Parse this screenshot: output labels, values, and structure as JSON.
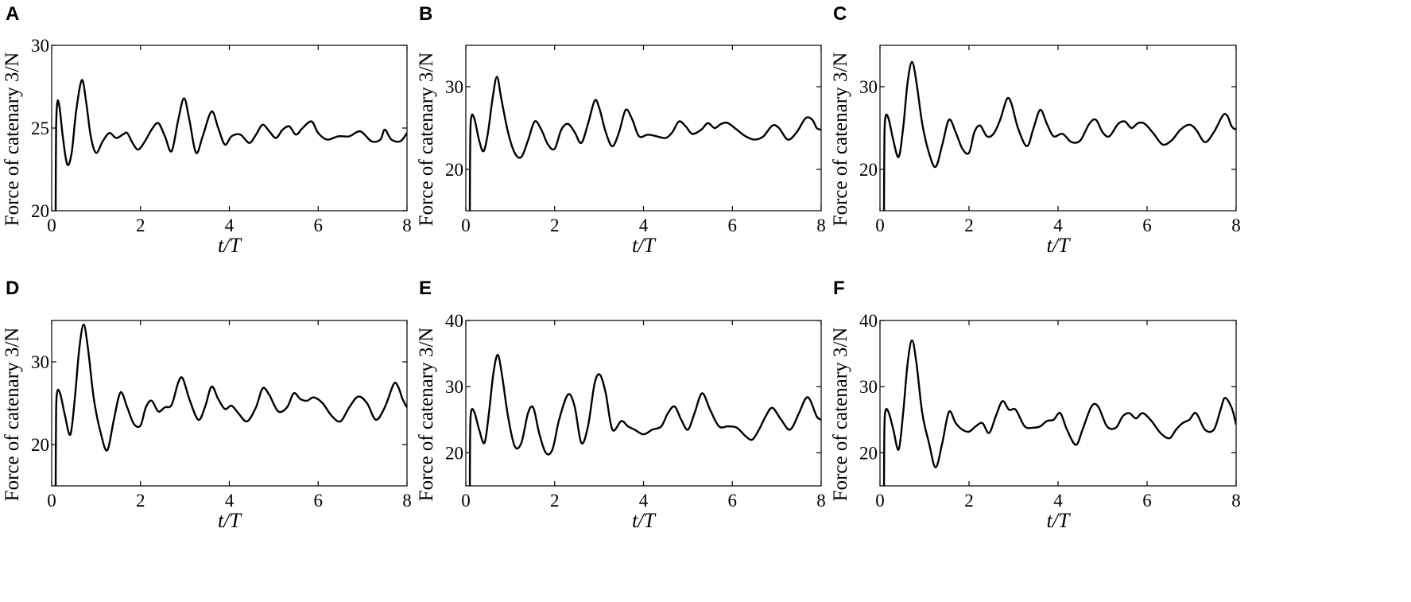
{
  "chart_data": [
    {
      "type": "line",
      "panel_label": "A",
      "xlabel": "t/T",
      "ylabel": "Force of catenary 3/N",
      "xlim": [
        0,
        8
      ],
      "ylim": [
        20,
        30
      ],
      "xticks": [
        0,
        2,
        4,
        6,
        8
      ],
      "yticks": [
        20,
        25,
        30
      ],
      "grid": false,
      "series": [
        {
          "x": [
            0.09,
            0.1,
            0.13,
            0.18,
            0.25,
            0.35,
            0.45,
            0.55,
            0.68,
            0.78,
            0.88,
            1.0,
            1.15,
            1.3,
            1.45,
            1.6,
            1.7,
            1.82,
            1.95,
            2.1,
            2.25,
            2.4,
            2.55,
            2.7,
            2.85,
            2.98,
            3.1,
            3.25,
            3.4,
            3.6,
            3.75,
            3.9,
            4.05,
            4.25,
            4.45,
            4.6,
            4.75,
            4.9,
            5.05,
            5.2,
            5.35,
            5.5,
            5.65,
            5.85,
            6.0,
            6.2,
            6.45,
            6.7,
            6.95,
            7.2,
            7.4,
            7.5,
            7.65,
            7.85,
            8.0
          ],
          "y": [
            20.0,
            25.0,
            26.6,
            26.2,
            24.5,
            22.8,
            23.5,
            26.0,
            27.9,
            26.5,
            24.5,
            23.5,
            24.2,
            24.7,
            24.4,
            24.6,
            24.7,
            24.1,
            23.7,
            24.2,
            24.9,
            25.3,
            24.5,
            23.6,
            25.5,
            26.8,
            25.5,
            23.5,
            24.5,
            26.0,
            25.0,
            24.0,
            24.5,
            24.6,
            24.1,
            24.6,
            25.2,
            24.8,
            24.4,
            24.9,
            25.1,
            24.6,
            25.0,
            25.4,
            24.7,
            24.3,
            24.5,
            24.5,
            24.8,
            24.2,
            24.3,
            24.9,
            24.3,
            24.2,
            24.7
          ]
        }
      ]
    },
    {
      "type": "line",
      "panel_label": "B",
      "xlabel": "t/T",
      "ylabel": "Force of catenary 3/N",
      "xlim": [
        0,
        8
      ],
      "ylim": [
        15,
        35
      ],
      "xticks": [
        0,
        2,
        4,
        6,
        8
      ],
      "yticks": [
        20,
        30
      ],
      "grid": false,
      "series": [
        {
          "x": [
            0.09,
            0.1,
            0.13,
            0.2,
            0.3,
            0.4,
            0.5,
            0.6,
            0.7,
            0.8,
            0.95,
            1.1,
            1.25,
            1.4,
            1.55,
            1.7,
            1.85,
            2.0,
            2.15,
            2.3,
            2.45,
            2.6,
            2.75,
            2.9,
            3.0,
            3.15,
            3.3,
            3.45,
            3.6,
            3.75,
            3.9,
            4.1,
            4.3,
            4.5,
            4.65,
            4.8,
            4.95,
            5.1,
            5.3,
            5.45,
            5.6,
            5.75,
            5.9,
            6.1,
            6.3,
            6.5,
            6.7,
            6.9,
            7.05,
            7.25,
            7.45,
            7.65,
            7.8,
            7.9,
            8.0
          ],
          "y": [
            15.0,
            24.0,
            26.5,
            26.0,
            23.5,
            22.2,
            24.5,
            28.5,
            31.2,
            28.5,
            24.5,
            22.0,
            21.5,
            23.5,
            25.8,
            24.8,
            23.0,
            22.5,
            24.8,
            25.5,
            24.5,
            23.2,
            25.5,
            28.3,
            27.5,
            24.5,
            22.8,
            24.5,
            27.2,
            26.0,
            24.0,
            24.2,
            24.0,
            23.8,
            24.5,
            25.8,
            25.2,
            24.3,
            24.8,
            25.6,
            25.0,
            25.5,
            25.6,
            24.8,
            24.0,
            23.6,
            24.0,
            25.3,
            25.0,
            23.6,
            24.5,
            26.2,
            26.0,
            25.0,
            24.8
          ]
        }
      ]
    },
    {
      "type": "line",
      "panel_label": "C",
      "xlabel": "t/T",
      "ylabel": "Force of catenary 3/N",
      "xlim": [
        0,
        8
      ],
      "ylim": [
        15,
        35
      ],
      "xticks": [
        0,
        2,
        4,
        6,
        8
      ],
      "yticks": [
        20,
        30
      ],
      "grid": false,
      "series": [
        {
          "x": [
            0.09,
            0.1,
            0.13,
            0.2,
            0.3,
            0.42,
            0.52,
            0.62,
            0.72,
            0.82,
            0.95,
            1.1,
            1.25,
            1.4,
            1.55,
            1.7,
            1.85,
            2.0,
            2.12,
            2.25,
            2.4,
            2.55,
            2.7,
            2.85,
            2.95,
            3.1,
            3.3,
            3.45,
            3.6,
            3.75,
            3.9,
            4.1,
            4.3,
            4.5,
            4.7,
            4.85,
            5.0,
            5.15,
            5.35,
            5.5,
            5.65,
            5.8,
            5.95,
            6.15,
            6.35,
            6.55,
            6.75,
            6.95,
            7.1,
            7.3,
            7.5,
            7.7,
            7.8,
            7.9,
            8.0
          ],
          "y": [
            15.0,
            24.0,
            26.5,
            26.0,
            23.5,
            21.5,
            25.0,
            30.5,
            33.0,
            30.5,
            25.5,
            22.0,
            20.3,
            23.0,
            26.0,
            24.5,
            22.5,
            22.0,
            24.5,
            25.3,
            24.0,
            24.3,
            26.0,
            28.5,
            28.0,
            25.0,
            22.8,
            25.0,
            27.2,
            25.5,
            24.0,
            24.3,
            23.3,
            23.5,
            25.5,
            26.0,
            24.5,
            24.0,
            25.5,
            25.8,
            25.0,
            25.6,
            25.5,
            24.3,
            23.0,
            23.5,
            24.8,
            25.4,
            24.8,
            23.3,
            24.5,
            26.5,
            26.5,
            25.2,
            24.8
          ]
        }
      ]
    },
    {
      "type": "line",
      "panel_label": "D",
      "xlabel": "t/T",
      "ylabel": "Force of catenary 3/N",
      "xlim": [
        0,
        8
      ],
      "ylim": [
        15,
        35
      ],
      "xticks": [
        0,
        2,
        4,
        6,
        8
      ],
      "yticks": [
        20,
        30
      ],
      "grid": false,
      "series": [
        {
          "x": [
            0.09,
            0.1,
            0.13,
            0.2,
            0.3,
            0.42,
            0.52,
            0.62,
            0.72,
            0.82,
            0.95,
            1.1,
            1.25,
            1.4,
            1.55,
            1.7,
            1.85,
            2.0,
            2.12,
            2.25,
            2.4,
            2.55,
            2.7,
            2.85,
            2.95,
            3.1,
            3.3,
            3.45,
            3.6,
            3.75,
            3.9,
            4.05,
            4.2,
            4.4,
            4.6,
            4.75,
            4.9,
            5.1,
            5.3,
            5.45,
            5.6,
            5.75,
            5.9,
            6.1,
            6.3,
            6.5,
            6.7,
            6.9,
            7.1,
            7.3,
            7.5,
            7.7,
            7.8,
            7.9,
            8.0
          ],
          "y": [
            15.0,
            24.0,
            26.5,
            26.0,
            23.5,
            21.2,
            25.5,
            31.5,
            34.5,
            31.5,
            25.5,
            21.5,
            19.3,
            23.0,
            26.3,
            24.5,
            22.5,
            22.3,
            24.5,
            25.3,
            24.0,
            24.5,
            24.8,
            27.5,
            28.0,
            25.5,
            23.0,
            24.5,
            27.0,
            25.5,
            24.3,
            24.7,
            23.8,
            22.8,
            24.5,
            26.8,
            26.0,
            24.0,
            24.5,
            26.2,
            25.5,
            25.3,
            25.7,
            25.0,
            23.5,
            22.8,
            24.5,
            25.8,
            25.0,
            23.0,
            24.5,
            27.3,
            27.0,
            25.5,
            24.5
          ]
        }
      ]
    },
    {
      "type": "line",
      "panel_label": "E",
      "xlabel": "t/T",
      "ylabel": "Force of catenary 3/N",
      "xlim": [
        0,
        8
      ],
      "ylim": [
        15,
        40
      ],
      "xticks": [
        0,
        2,
        4,
        6,
        8
      ],
      "yticks": [
        20,
        30,
        40
      ],
      "grid": false,
      "series": [
        {
          "x": [
            0.09,
            0.1,
            0.13,
            0.2,
            0.3,
            0.42,
            0.52,
            0.62,
            0.72,
            0.82,
            0.95,
            1.1,
            1.25,
            1.4,
            1.52,
            1.65,
            1.8,
            1.95,
            2.1,
            2.3,
            2.45,
            2.6,
            2.75,
            2.9,
            3.02,
            3.15,
            3.3,
            3.5,
            3.65,
            3.8,
            4.0,
            4.2,
            4.4,
            4.55,
            4.7,
            4.85,
            5.0,
            5.15,
            5.32,
            5.5,
            5.7,
            5.9,
            6.1,
            6.3,
            6.45,
            6.6,
            6.75,
            6.9,
            7.1,
            7.3,
            7.5,
            7.65,
            7.75,
            7.9,
            8.0
          ],
          "y": [
            15.0,
            24.0,
            26.5,
            26.0,
            23.5,
            21.5,
            26.0,
            32.0,
            34.8,
            31.5,
            25.5,
            21.0,
            21.5,
            26.0,
            26.8,
            23.0,
            20.0,
            20.5,
            25.0,
            28.8,
            27.0,
            21.5,
            24.0,
            30.5,
            31.8,
            29.0,
            23.5,
            24.8,
            24.0,
            23.5,
            22.8,
            23.5,
            24.0,
            26.0,
            27.0,
            25.0,
            23.5,
            26.0,
            29.0,
            26.5,
            24.0,
            24.0,
            23.8,
            22.5,
            22.0,
            23.5,
            25.5,
            26.8,
            25.0,
            23.5,
            26.0,
            28.2,
            28.0,
            25.5,
            25.0
          ]
        }
      ]
    },
    {
      "type": "line",
      "panel_label": "F",
      "xlabel": "t/T",
      "ylabel": "Force of catenary 3/N",
      "xlim": [
        0,
        8
      ],
      "ylim": [
        15,
        40
      ],
      "xticks": [
        0,
        2,
        4,
        6,
        8
      ],
      "yticks": [
        20,
        30,
        40
      ],
      "grid": false,
      "series": [
        {
          "x": [
            0.09,
            0.1,
            0.13,
            0.2,
            0.3,
            0.42,
            0.52,
            0.62,
            0.72,
            0.82,
            0.95,
            1.1,
            1.25,
            1.4,
            1.55,
            1.7,
            1.85,
            2.0,
            2.15,
            2.3,
            2.45,
            2.6,
            2.75,
            2.9,
            3.05,
            3.25,
            3.45,
            3.6,
            3.75,
            3.9,
            4.05,
            4.2,
            4.4,
            4.55,
            4.75,
            4.9,
            5.1,
            5.3,
            5.45,
            5.6,
            5.75,
            5.9,
            6.1,
            6.3,
            6.5,
            6.65,
            6.8,
            6.95,
            7.1,
            7.3,
            7.5,
            7.65,
            7.75,
            7.9,
            8.0
          ],
          "y": [
            15.0,
            24.0,
            26.5,
            26.0,
            23.5,
            20.5,
            26.0,
            33.5,
            37.0,
            33.5,
            26.0,
            21.5,
            17.8,
            21.5,
            26.2,
            24.5,
            23.5,
            23.2,
            24.0,
            24.5,
            23.0,
            25.5,
            27.8,
            26.5,
            26.5,
            24.0,
            23.8,
            24.0,
            24.8,
            25.0,
            26.0,
            23.5,
            21.2,
            23.5,
            27.0,
            27.0,
            24.0,
            23.8,
            25.5,
            26.0,
            25.2,
            26.0,
            24.8,
            23.0,
            22.2,
            23.5,
            24.5,
            25.0,
            26.0,
            23.5,
            23.5,
            26.5,
            28.3,
            26.8,
            24.3
          ]
        }
      ]
    }
  ]
}
